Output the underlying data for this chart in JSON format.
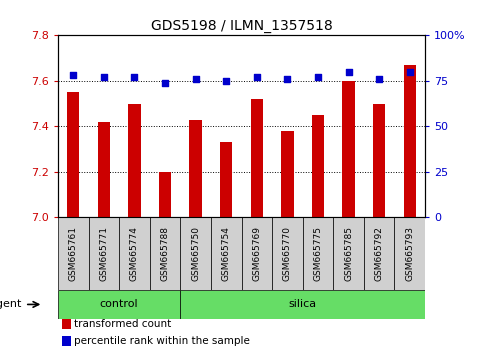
{
  "title": "GDS5198 / ILMN_1357518",
  "samples": [
    "GSM665761",
    "GSM665771",
    "GSM665774",
    "GSM665788",
    "GSM665750",
    "GSM665754",
    "GSM665769",
    "GSM665770",
    "GSM665775",
    "GSM665785",
    "GSM665792",
    "GSM665793"
  ],
  "transformed_count": [
    7.55,
    7.42,
    7.5,
    7.2,
    7.43,
    7.33,
    7.52,
    7.38,
    7.45,
    7.6,
    7.5,
    7.67
  ],
  "percentile_rank": [
    78,
    77,
    77,
    74,
    76,
    75,
    77,
    76,
    77,
    80,
    76,
    80
  ],
  "control_count": 4,
  "total_count": 12,
  "ylim_left": [
    7.0,
    7.8
  ],
  "ylim_right": [
    0,
    100
  ],
  "yticks_left": [
    7.0,
    7.2,
    7.4,
    7.6,
    7.8
  ],
  "yticks_right": [
    0,
    25,
    50,
    75,
    100
  ],
  "bar_color": "#cc0000",
  "dot_color": "#0000cc",
  "bar_width": 0.4,
  "background_color": "#ffffff",
  "grid_color": "#000000",
  "tick_label_color_left": "#cc0000",
  "tick_label_color_right": "#0000cc",
  "group_color": "#66dd66",
  "sample_box_color": "#d0d0d0",
  "legend_items": [
    {
      "label": "transformed count",
      "color": "#cc0000"
    },
    {
      "label": "percentile rank within the sample",
      "color": "#0000cc"
    }
  ]
}
